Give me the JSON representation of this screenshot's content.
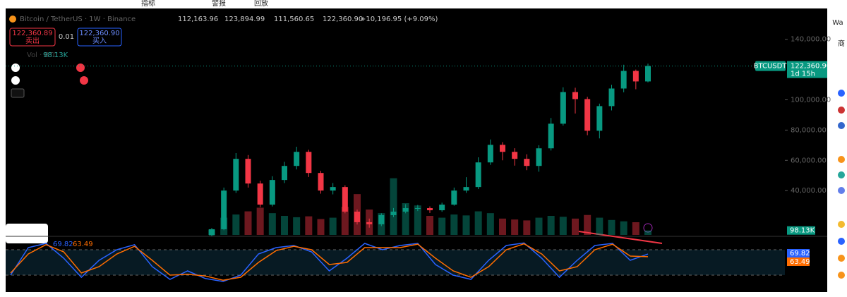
{
  "toolbar": {
    "items": [
      "指标",
      "警报",
      "回放"
    ]
  },
  "legend": {
    "symbol": "Bitcoin / TetherUS · 1W · Binance",
    "open": "112,163.96",
    "high": "123,894.99",
    "low": "111,560.65",
    "close": "122,360.90",
    "change": "+10,196.95 (+9.09%)"
  },
  "trade": {
    "sell_price": "122,360.89",
    "sell_label": "卖出",
    "spread": "0.01",
    "buy_price": "122,360.90",
    "buy_label": "买入"
  },
  "volume_legend": {
    "label": "Vol · BTC",
    "value": "98.13K"
  },
  "chart_data": [
    {
      "type": "candlestick",
      "symbol_tag": "BTCUSDT",
      "last_price": {
        "value": 122360.9,
        "label": "122,360.90"
      },
      "countdown": "1d 15h",
      "up_color": "#089981",
      "down_color": "#f23645",
      "ylim": [
        10700,
        159000
      ],
      "yticks": [
        {
          "value": 40000,
          "label": "40,000.00"
        },
        {
          "value": 60000,
          "label": "60,000.00"
        },
        {
          "value": 80000,
          "label": "80,000.00"
        },
        {
          "value": 100000,
          "label": "100,000.00"
        },
        {
          "value": 140000,
          "label": "140,000.00"
        }
      ],
      "open": [
        10500,
        14460,
        40030,
        61000,
        44690,
        30730,
        47010,
        56310,
        65610,
        51650,
        40030,
        42350,
        26100,
        19120,
        17730,
        23780,
        26100,
        28410,
        28410,
        27010,
        30730,
        40030,
        42350,
        58640,
        70270,
        65610,
        61000,
        56310,
        67940,
        84220,
        105150,
        100500,
        79570,
        95850,
        107480,
        119110,
        112163.96
      ],
      "high": [
        15300,
        42000,
        64800,
        63500,
        46500,
        49500,
        59000,
        69000,
        67000,
        53000,
        45000,
        43500,
        27500,
        21500,
        25000,
        28500,
        31000,
        30500,
        29500,
        32000,
        42000,
        48900,
        62000,
        73800,
        72000,
        68000,
        64000,
        70000,
        88000,
        108300,
        108000,
        102000,
        97500,
        110000,
        123200,
        120000,
        123894.99
      ],
      "low": [
        9900,
        13800,
        38500,
        42000,
        29000,
        29500,
        45000,
        54000,
        49000,
        38000,
        37500,
        25000,
        17600,
        15500,
        16500,
        22500,
        25000,
        26500,
        25200,
        26000,
        30000,
        38500,
        41000,
        57000,
        60000,
        56500,
        53500,
        52500,
        66500,
        83000,
        91000,
        76600,
        74500,
        93000,
        105000,
        107000,
        111560.65
      ],
      "close": [
        14460,
        40030,
        61000,
        44690,
        30730,
        47010,
        56310,
        65610,
        51650,
        40030,
        42350,
        26100,
        19120,
        17730,
        23780,
        26100,
        28410,
        28410,
        27010,
        30730,
        40030,
        42350,
        58640,
        70270,
        65610,
        61000,
        56310,
        67940,
        84220,
        105150,
        100500,
        79570,
        95850,
        107480,
        119110,
        112163.96,
        122360.9
      ],
      "volume": [
        120000,
        380000,
        450000,
        520000,
        600000,
        480000,
        420000,
        390000,
        410000,
        350000,
        380000,
        620000,
        900000,
        560000,
        480000,
        1250000,
        700000,
        650000,
        420000,
        380000,
        450000,
        430000,
        520000,
        480000,
        360000,
        340000,
        320000,
        380000,
        420000,
        400000,
        360000,
        440000,
        380000,
        330000,
        300000,
        280000,
        98130
      ],
      "volume_ylim": [
        0,
        1400000
      ],
      "volume_tag": {
        "value": 98130,
        "label": "98.13K"
      }
    },
    {
      "type": "line",
      "ylim": [
        0,
        100
      ],
      "bands": [
        20,
        80
      ],
      "series": [
        {
          "color": "#2962ff",
          "values": [
            20,
            85,
            95,
            60,
            15,
            55,
            80,
            92,
            40,
            10,
            30,
            12,
            5,
            20,
            70,
            85,
            90,
            75,
            30,
            60,
            95,
            80,
            90,
            95,
            45,
            20,
            10,
            55,
            90,
            96,
            60,
            15,
            55,
            90,
            95,
            55,
            69.82
          ]
        },
        {
          "color": "#ff6d00",
          "values": [
            25,
            70,
            92,
            75,
            25,
            40,
            70,
            88,
            55,
            20,
            22,
            18,
            8,
            15,
            50,
            78,
            88,
            80,
            45,
            50,
            85,
            85,
            85,
            93,
            60,
            30,
            15,
            40,
            80,
            94,
            70,
            30,
            40,
            80,
            93,
            65,
            63.49
          ]
        }
      ]
    }
  ],
  "watchlist": {
    "title": "Wa",
    "tab": "商"
  }
}
